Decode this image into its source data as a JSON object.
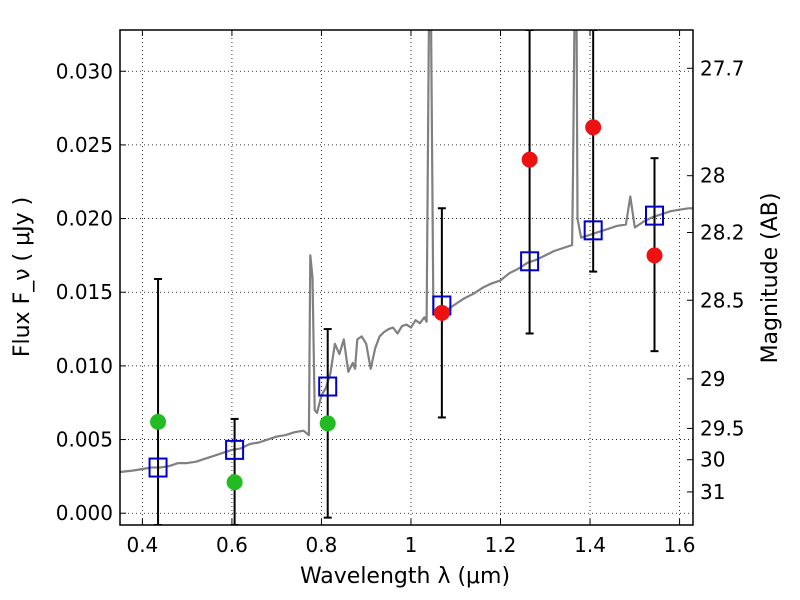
{
  "chart_data": {
    "type": "scatter",
    "xlabel": "Wavelength  λ (μm)",
    "ylabel": "Flux  F_ν  ( μJy )",
    "ylabel_right": "Magnitude (AB)",
    "xlim": [
      0.35,
      1.63
    ],
    "ylim": [
      -0.0008,
      0.0328
    ],
    "grid": true,
    "x_ticks": [
      {
        "value": 0.4,
        "label": "0.4"
      },
      {
        "value": 0.6,
        "label": "0.6"
      },
      {
        "value": 0.8,
        "label": "0.8"
      },
      {
        "value": 1.0,
        "label": "1"
      },
      {
        "value": 1.2,
        "label": "1.2"
      },
      {
        "value": 1.4,
        "label": "1.4"
      },
      {
        "value": 1.6,
        "label": "1.6"
      }
    ],
    "y_ticks": [
      {
        "value": 0.0,
        "label": "0.000"
      },
      {
        "value": 0.005,
        "label": "0.005"
      },
      {
        "value": 0.01,
        "label": "0.010"
      },
      {
        "value": 0.015,
        "label": "0.015"
      },
      {
        "value": 0.02,
        "label": "0.020"
      },
      {
        "value": 0.025,
        "label": "0.025"
      },
      {
        "value": 0.03,
        "label": "0.030"
      }
    ],
    "mag_ticks": [
      {
        "mag": 27.7,
        "label": "27.7"
      },
      {
        "mag": 28,
        "label": "28"
      },
      {
        "mag": 28.2,
        "label": "28.2"
      },
      {
        "mag": 28.5,
        "label": "28.5"
      },
      {
        "mag": 29,
        "label": "29"
      },
      {
        "mag": 29.5,
        "label": "29.5"
      },
      {
        "mag": 30,
        "label": "30"
      },
      {
        "mag": 31,
        "label": "31"
      }
    ],
    "colors": {
      "model": "#808080",
      "optical_points": "#22bb22",
      "nir_points": "#ee1111",
      "model_boxes": "#0000cc",
      "errorbars": "#000000"
    },
    "model_spectrum": [
      [
        0.35,
        0.0028
      ],
      [
        0.38,
        0.0029
      ],
      [
        0.4,
        0.003
      ],
      [
        0.42,
        0.0031
      ],
      [
        0.44,
        0.0031
      ],
      [
        0.46,
        0.0032
      ],
      [
        0.48,
        0.0034
      ],
      [
        0.5,
        0.0034
      ],
      [
        0.52,
        0.0035
      ],
      [
        0.54,
        0.0037
      ],
      [
        0.56,
        0.0039
      ],
      [
        0.58,
        0.0041
      ],
      [
        0.6,
        0.0043
      ],
      [
        0.62,
        0.0044
      ],
      [
        0.64,
        0.0047
      ],
      [
        0.66,
        0.0048
      ],
      [
        0.68,
        0.005
      ],
      [
        0.7,
        0.0052
      ],
      [
        0.72,
        0.0053
      ],
      [
        0.74,
        0.0055
      ],
      [
        0.76,
        0.0056
      ],
      [
        0.772,
        0.0053
      ],
      [
        0.775,
        0.0175
      ],
      [
        0.78,
        0.016
      ],
      [
        0.785,
        0.007
      ],
      [
        0.79,
        0.0068
      ],
      [
        0.8,
        0.008
      ],
      [
        0.81,
        0.0085
      ],
      [
        0.82,
        0.0095
      ],
      [
        0.83,
        0.0115
      ],
      [
        0.84,
        0.0108
      ],
      [
        0.85,
        0.0118
      ],
      [
        0.86,
        0.0096
      ],
      [
        0.87,
        0.0102
      ],
      [
        0.875,
        0.0098
      ],
      [
        0.88,
        0.0118
      ],
      [
        0.89,
        0.012
      ],
      [
        0.9,
        0.0115
      ],
      [
        0.91,
        0.0098
      ],
      [
        0.92,
        0.0112
      ],
      [
        0.93,
        0.012
      ],
      [
        0.94,
        0.0123
      ],
      [
        0.95,
        0.0125
      ],
      [
        0.96,
        0.0126
      ],
      [
        0.97,
        0.0122
      ],
      [
        0.98,
        0.0127
      ],
      [
        0.99,
        0.0128
      ],
      [
        1.0,
        0.0126
      ],
      [
        1.01,
        0.0131
      ],
      [
        1.02,
        0.0129
      ],
      [
        1.03,
        0.0133
      ],
      [
        1.035,
        0.013
      ],
      [
        1.04,
        0.033
      ],
      [
        1.045,
        0.033
      ],
      [
        1.05,
        0.0135
      ],
      [
        1.06,
        0.0137
      ],
      [
        1.08,
        0.0138
      ],
      [
        1.1,
        0.0142
      ],
      [
        1.12,
        0.0146
      ],
      [
        1.14,
        0.0149
      ],
      [
        1.16,
        0.0153
      ],
      [
        1.18,
        0.0156
      ],
      [
        1.2,
        0.0158
      ],
      [
        1.22,
        0.0163
      ],
      [
        1.24,
        0.0166
      ],
      [
        1.26,
        0.017
      ],
      [
        1.28,
        0.0172
      ],
      [
        1.3,
        0.0175
      ],
      [
        1.32,
        0.0178
      ],
      [
        1.34,
        0.018
      ],
      [
        1.36,
        0.0182
      ],
      [
        1.362,
        0.023
      ],
      [
        1.365,
        0.033
      ],
      [
        1.37,
        0.033
      ],
      [
        1.372,
        0.02
      ],
      [
        1.38,
        0.0187
      ],
      [
        1.4,
        0.0189
      ],
      [
        1.42,
        0.0191
      ],
      [
        1.44,
        0.0193
      ],
      [
        1.46,
        0.0195
      ],
      [
        1.48,
        0.0196
      ],
      [
        1.49,
        0.0215
      ],
      [
        1.5,
        0.0194
      ],
      [
        1.52,
        0.0198
      ],
      [
        1.54,
        0.0201
      ],
      [
        1.56,
        0.0203
      ],
      [
        1.58,
        0.0205
      ],
      [
        1.6,
        0.0206
      ],
      [
        1.62,
        0.0207
      ],
      [
        1.63,
        0.0207
      ]
    ],
    "errorbars": [
      {
        "x": 0.435,
        "ylow": -0.0008,
        "yhigh": 0.0159
      },
      {
        "x": 0.606,
        "ylow": -0.0008,
        "yhigh": 0.0064
      },
      {
        "x": 0.814,
        "ylow": -0.0003,
        "yhigh": 0.0125
      },
      {
        "x": 1.069,
        "ylow": 0.0065,
        "yhigh": 0.0207
      },
      {
        "x": 1.265,
        "ylow": 0.0122,
        "yhigh": 0.0328
      },
      {
        "x": 1.407,
        "ylow": 0.0164,
        "yhigh": 0.0328
      },
      {
        "x": 1.544,
        "ylow": 0.011,
        "yhigh": 0.0241
      }
    ],
    "model_boxes": [
      {
        "x": 0.435,
        "y": 0.0031
      },
      {
        "x": 0.606,
        "y": 0.0043
      },
      {
        "x": 0.814,
        "y": 0.0086
      },
      {
        "x": 1.069,
        "y": 0.0141
      },
      {
        "x": 1.265,
        "y": 0.0171
      },
      {
        "x": 1.407,
        "y": 0.0192
      },
      {
        "x": 1.544,
        "y": 0.0202
      }
    ],
    "observed_optical": [
      {
        "x": 0.435,
        "y": 0.0062
      },
      {
        "x": 0.606,
        "y": 0.0021
      },
      {
        "x": 0.814,
        "y": 0.0061
      }
    ],
    "observed_nir": [
      {
        "x": 1.069,
        "y": 0.0136
      },
      {
        "x": 1.265,
        "y": 0.024
      },
      {
        "x": 1.407,
        "y": 0.0262
      },
      {
        "x": 1.544,
        "y": 0.0175
      }
    ]
  }
}
